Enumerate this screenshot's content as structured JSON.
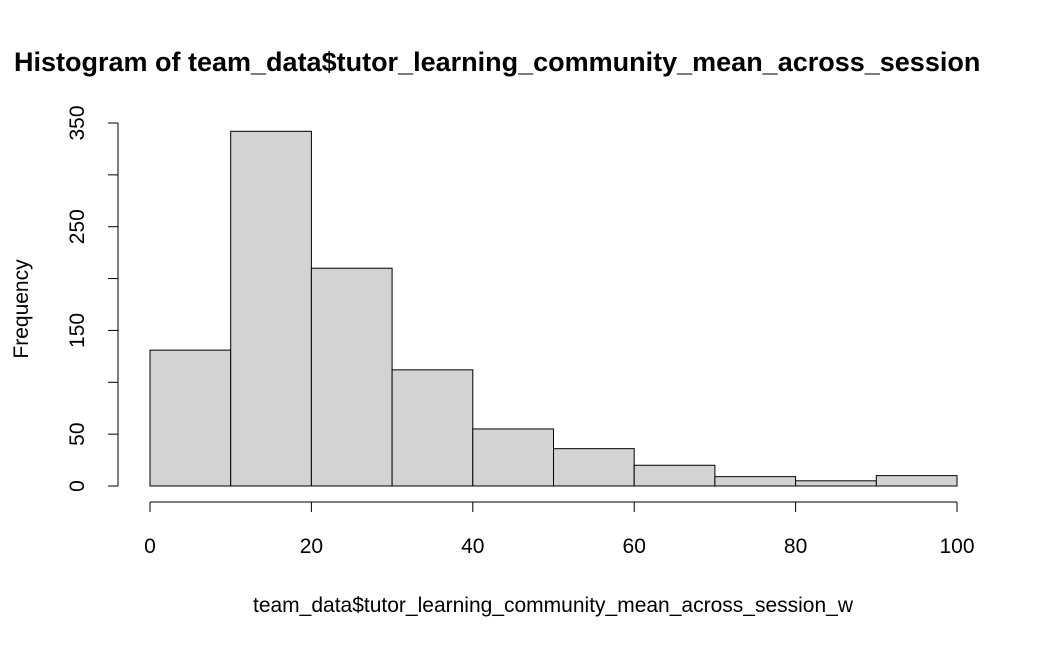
{
  "chart_data": {
    "type": "bar",
    "title": "Histogram of team_data$tutor_learning_community_mean_across_session",
    "xlabel": "team_data$tutor_learning_community_mean_across_session_w",
    "ylabel": "Frequency",
    "bins": [
      {
        "from": 0,
        "to": 10,
        "count": 131
      },
      {
        "from": 10,
        "to": 20,
        "count": 342
      },
      {
        "from": 20,
        "to": 30,
        "count": 210
      },
      {
        "from": 30,
        "to": 40,
        "count": 112
      },
      {
        "from": 40,
        "to": 50,
        "count": 55
      },
      {
        "from": 50,
        "to": 60,
        "count": 36
      },
      {
        "from": 60,
        "to": 70,
        "count": 20
      },
      {
        "from": 70,
        "to": 80,
        "count": 9
      },
      {
        "from": 80,
        "to": 90,
        "count": 5
      },
      {
        "from": 90,
        "to": 100,
        "count": 10
      }
    ],
    "xlim": [
      0,
      100
    ],
    "ylim": [
      0,
      350
    ],
    "x_ticks": [
      "0",
      "20",
      "40",
      "60",
      "80",
      "100"
    ],
    "y_ticks": [
      "0",
      "50",
      "150",
      "250",
      "350"
    ],
    "y_minor_ticks": [
      100,
      200,
      300
    ],
    "bar_fill": "#d3d3d3",
    "bar_stroke": "#000000",
    "grid": false
  }
}
